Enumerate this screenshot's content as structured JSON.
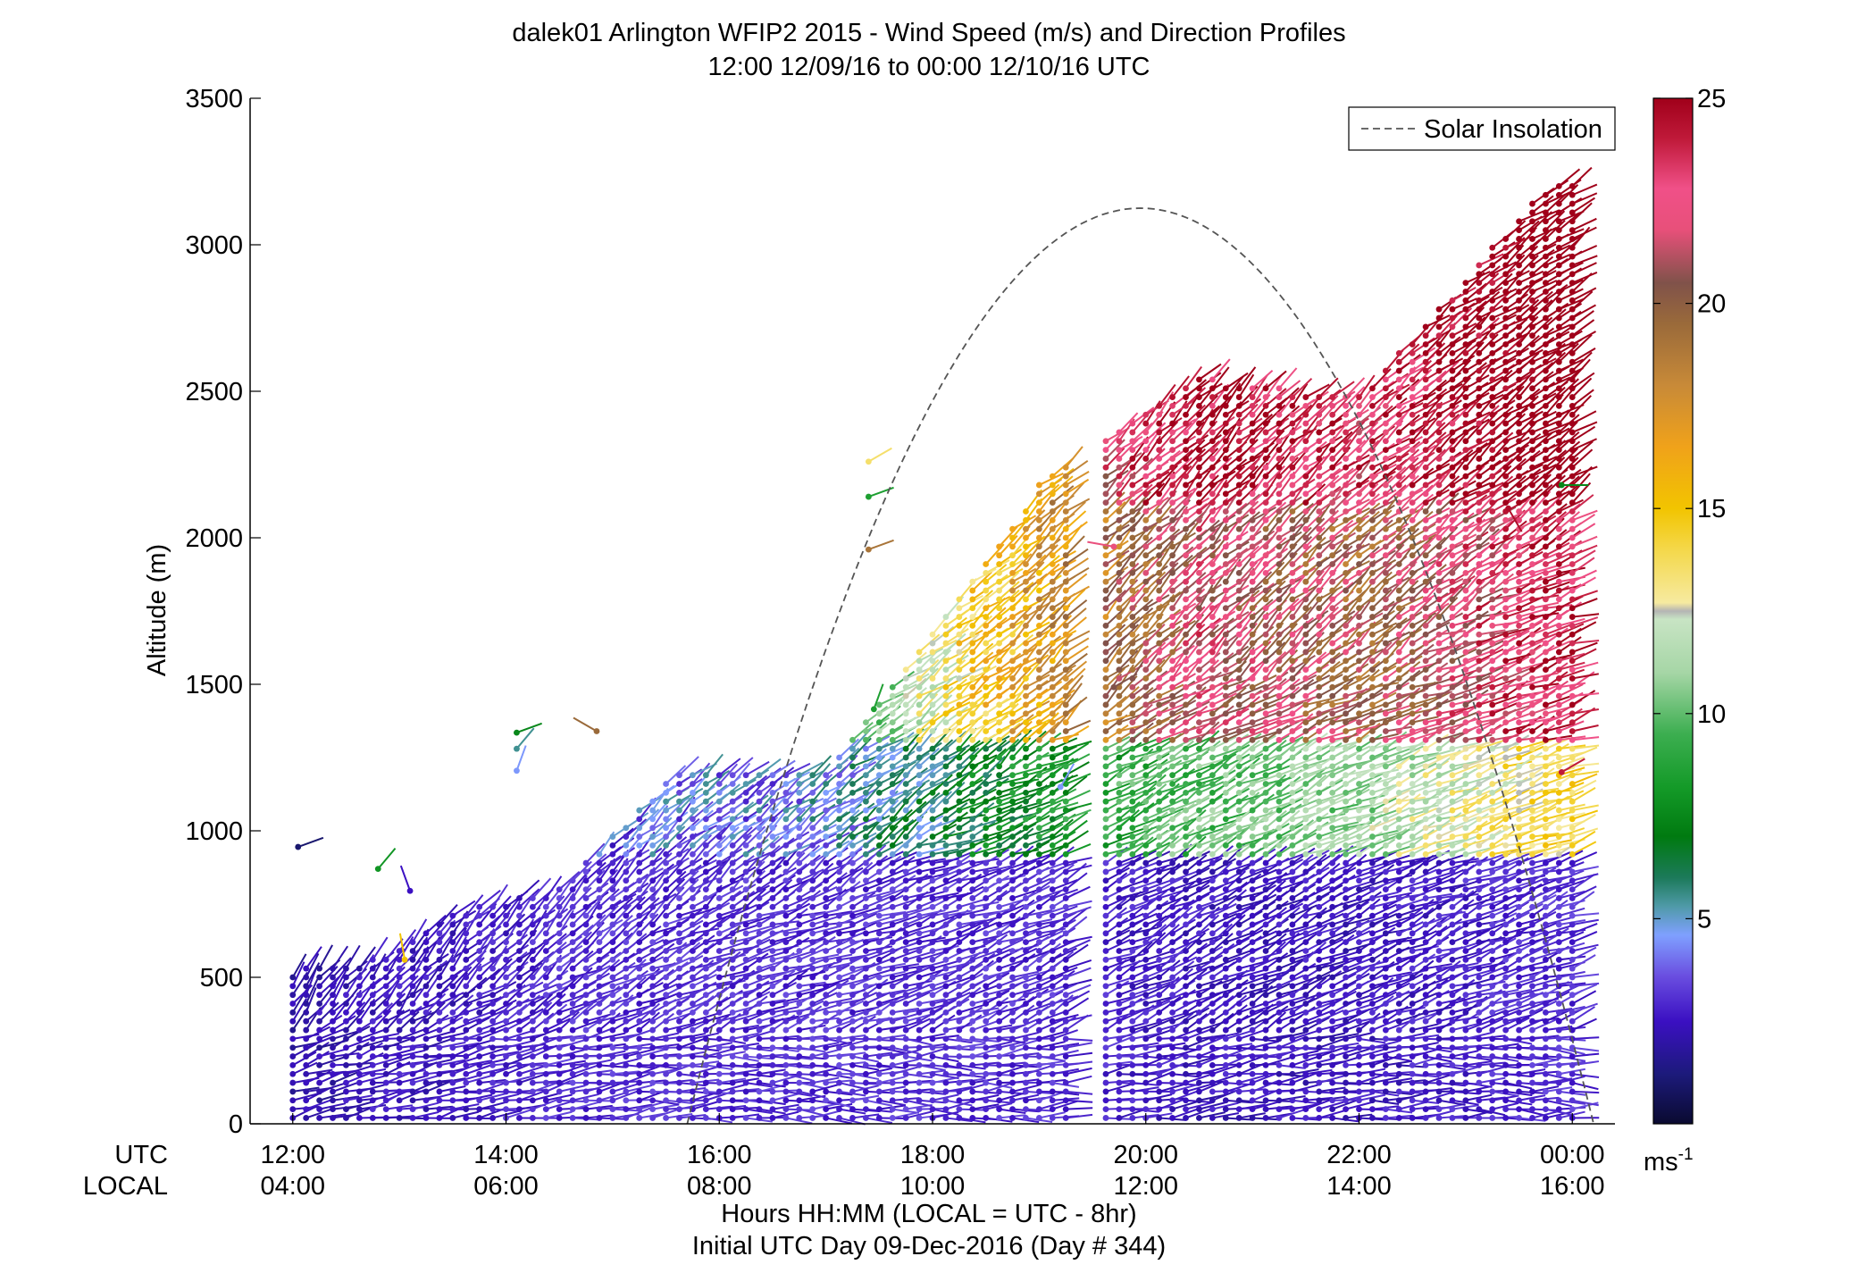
{
  "chart_data": {
    "type": "wind-barb profile",
    "title_line1": "dalek01 Arlington WFIP2 2015 - Wind Speed (m/s) and Direction Profiles",
    "title_line2": "12:00 12/09/16 to 00:00 12/10/16  UTC",
    "ylabel": "Altitude (m)",
    "ylim": [
      0,
      3500
    ],
    "yticks": [
      "0",
      "500",
      "1000",
      "1500",
      "2000",
      "2500",
      "3000",
      "3500"
    ],
    "xlim_hours": [
      11.6,
      24.4
    ],
    "utc_row_label": "UTC",
    "local_row_label": "LOCAL",
    "utc_ticks": [
      "12:00",
      "14:00",
      "16:00",
      "18:00",
      "20:00",
      "22:00",
      "00:00"
    ],
    "local_ticks": [
      "04:00",
      "06:00",
      "08:00",
      "10:00",
      "12:00",
      "14:00",
      "16:00"
    ],
    "tick_hours": [
      12,
      14,
      16,
      18,
      20,
      22,
      24
    ],
    "xlabel_line1": "Hours HH:MM  (LOCAL = UTC - 8hr)",
    "xlabel_line2": "Initial UTC Day 09-Dec-2016 (Day # 344)",
    "legend": {
      "label": "Solar Insolation",
      "position": "top-right",
      "line_color": "#555555"
    },
    "solar_insolation": {
      "start_hour": 15.7,
      "end_hour": 24.2,
      "peak_hour": 19.95,
      "peak_altitude_m": 3125
    },
    "colorbar": {
      "range": [
        0,
        25
      ],
      "ticks": [
        "5",
        "10",
        "15",
        "20",
        "25"
      ],
      "unit_label": "ms",
      "unit_exponent": "-1",
      "stops": [
        {
          "v": 0,
          "c": "#0a0a30"
        },
        {
          "v": 1.2,
          "c": "#1c1a7a"
        },
        {
          "v": 2.5,
          "c": "#3b10c2"
        },
        {
          "v": 3.6,
          "c": "#6a4ee0"
        },
        {
          "v": 4.6,
          "c": "#7fa0ff"
        },
        {
          "v": 5.3,
          "c": "#4f9aa8"
        },
        {
          "v": 6.0,
          "c": "#1c7a5a"
        },
        {
          "v": 7.0,
          "c": "#007a10"
        },
        {
          "v": 8.2,
          "c": "#149a28"
        },
        {
          "v": 9.5,
          "c": "#3cae50"
        },
        {
          "v": 11.0,
          "c": "#a6d6a6"
        },
        {
          "v": 12.3,
          "c": "#c8e4c4"
        },
        {
          "v": 12.5,
          "c": "#b4b4b4"
        },
        {
          "v": 12.7,
          "c": "#f6eaa0"
        },
        {
          "v": 14.0,
          "c": "#f4d84a"
        },
        {
          "v": 15.0,
          "c": "#f2c400"
        },
        {
          "v": 16.5,
          "c": "#f0a21a"
        },
        {
          "v": 18.0,
          "c": "#c88a38"
        },
        {
          "v": 19.5,
          "c": "#9a6a3a"
        },
        {
          "v": 20.5,
          "c": "#80524a"
        },
        {
          "v": 21.8,
          "c": "#e8507a"
        },
        {
          "v": 22.8,
          "c": "#f05088"
        },
        {
          "v": 24.0,
          "c": "#c01a3a"
        },
        {
          "v": 25.0,
          "c": "#a0001a"
        }
      ]
    },
    "barb_columns": [
      {
        "hour": 12.0,
        "altitudes": [
          0,
          525
        ],
        "speeds_by_band": [
          2,
          1.5,
          1.2
        ],
        "dir": 230
      },
      {
        "hour": 12.75,
        "altitudes": [
          0,
          560
        ],
        "speeds_by_band": [
          2.5,
          1.8,
          1.5
        ],
        "dir": 235
      },
      {
        "hour": 13.5,
        "altitudes": [
          0,
          720
        ],
        "speeds_by_band": [
          2.5,
          2.8,
          3.5
        ],
        "dir": 240
      },
      {
        "hour": 14.5,
        "altitudes": [
          0,
          800
        ],
        "speeds_by_band": [
          3,
          3.5,
          4.5
        ],
        "dir": 240
      },
      {
        "hour": 15.6,
        "altitudes": [
          0,
          1200
        ],
        "speeds_by_band": [
          3,
          4,
          8
        ],
        "dir": 245
      },
      {
        "hour": 17.0,
        "altitudes": [
          0,
          1200
        ],
        "speeds_by_band": [
          3,
          4.5,
          9
        ],
        "dir": 250
      },
      {
        "hour": 19.0,
        "altitudes": [
          0,
          2180
        ],
        "speeds_by_band": [
          3,
          8,
          17
        ],
        "dir": 245
      },
      {
        "hour": 20.5,
        "altitudes": [
          0,
          2550
        ],
        "speeds_by_band": [
          2.5,
          10,
          22
        ],
        "dir": 240
      },
      {
        "hour": 22.0,
        "altitudes": [
          0,
          2480
        ],
        "speeds_by_band": [
          2.5,
          11,
          20
        ],
        "dir": 245
      },
      {
        "hour": 23.8,
        "altitudes": [
          0,
          3220
        ],
        "speeds_by_band": [
          3,
          14,
          24
        ],
        "dir": 250
      }
    ],
    "isolated_barbs": [
      {
        "hour": 12.05,
        "alt": 945,
        "speed": 1.0,
        "dir": 250
      },
      {
        "hour": 12.8,
        "alt": 870,
        "speed": 8.0,
        "dir": 220
      },
      {
        "hour": 13.1,
        "alt": 795,
        "speed": 2.5,
        "dir": 160
      },
      {
        "hour": 13.05,
        "alt": 560,
        "speed": 15.0,
        "dir": 170
      },
      {
        "hour": 14.1,
        "alt": 1335,
        "speed": 7.5,
        "dir": 250
      },
      {
        "hour": 14.1,
        "alt": 1280,
        "speed": 5.5,
        "dir": 220
      },
      {
        "hour": 14.1,
        "alt": 1205,
        "speed": 4.5,
        "dir": 200
      },
      {
        "hour": 14.85,
        "alt": 1340,
        "speed": 19.5,
        "dir": 120
      },
      {
        "hour": 17.4,
        "alt": 2140,
        "speed": 8.5,
        "dir": 250
      },
      {
        "hour": 17.4,
        "alt": 2260,
        "speed": 13.5,
        "dir": 240
      },
      {
        "hour": 17.4,
        "alt": 1960,
        "speed": 19.0,
        "dir": 250
      },
      {
        "hour": 17.45,
        "alt": 1415,
        "speed": 8.5,
        "dir": 200
      },
      {
        "hour": 19.7,
        "alt": 1970,
        "speed": 22.0,
        "dir": 100
      },
      {
        "hour": 19.7,
        "alt": 1490,
        "speed": 20.5,
        "dir": 240
      },
      {
        "hour": 19.2,
        "alt": 1150,
        "speed": 4.5,
        "dir": 210
      },
      {
        "hour": 23.4,
        "alt": 2100,
        "speed": 24.5,
        "dir": 330
      },
      {
        "hour": 23.9,
        "alt": 1200,
        "speed": 24.0,
        "dir": 240
      },
      {
        "hour": 23.9,
        "alt": 2180,
        "speed": 7.5,
        "dir": 270
      }
    ]
  }
}
